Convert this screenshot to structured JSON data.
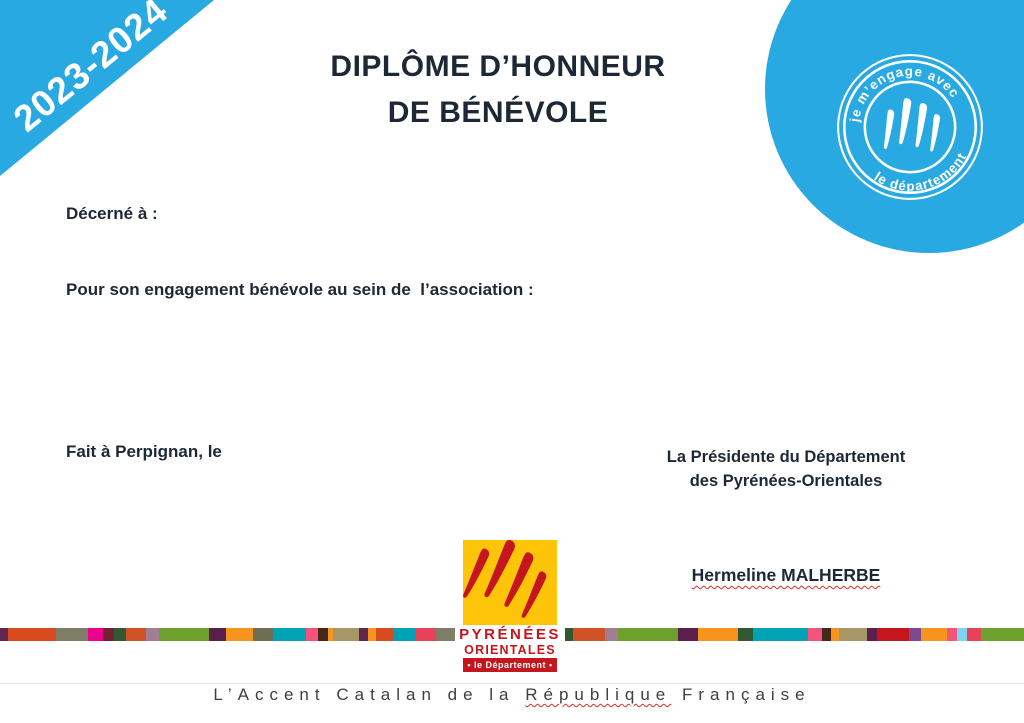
{
  "ribbon": {
    "year": "2023-2024",
    "color": "#29A9E1"
  },
  "title": {
    "line1": "DIPLÔME D’HONNEUR",
    "line2": "DE BÉNÉVOLE"
  },
  "badge": {
    "color": "#29A9E1",
    "top_text": "je m’engage avec",
    "bottom_text": "le département"
  },
  "body": {
    "awarded_to_label": "Décerné à :",
    "engagement_label": "Pour son engagement bénévole au sein de  l’association :",
    "place_date_label": "Fait à Perpignan, le"
  },
  "signature": {
    "role_line1": "La Présidente du Département",
    "role_line2": "des Pyrénées-Orientales",
    "name": "Hermeline MALHERBE"
  },
  "logo": {
    "name_line1": "PYRÉNÉES",
    "name_line2": "ORIENTALES",
    "banner": "• le Département •",
    "yellow": "#FDC408",
    "red": "#C4161C"
  },
  "footer": {
    "slogan_pre": "L’Accent Catalan de la ",
    "slogan_marked": "République",
    "slogan_post": " Française"
  },
  "stripe": {
    "segments": [
      [
        8,
        "#5E2750"
      ],
      [
        48,
        "#D84B20"
      ],
      [
        32,
        "#7E7D66"
      ],
      [
        15,
        "#EC008C"
      ],
      [
        11,
        "#6E2233"
      ],
      [
        12,
        "#335633"
      ],
      [
        20,
        "#D05226"
      ],
      [
        13,
        "#A07E93"
      ],
      [
        50,
        "#6FA02E"
      ],
      [
        17,
        "#5A1F4B"
      ],
      [
        27,
        "#F7941D"
      ],
      [
        20,
        "#6E6F52"
      ],
      [
        33,
        "#00A3B4"
      ],
      [
        12,
        "#F4537B"
      ],
      [
        10,
        "#44291B"
      ],
      [
        5,
        "#F7941D"
      ],
      [
        26,
        "#A59767"
      ],
      [
        9,
        "#5E2750"
      ],
      [
        8,
        "#F7941D"
      ],
      [
        17,
        "#D84B20"
      ],
      [
        23,
        "#00A3B4"
      ],
      [
        20,
        "#E8425A"
      ],
      [
        20,
        "#7E7D66"
      ],
      [
        8,
        "#5C3A22"
      ],
      [
        40,
        "#D84B20"
      ],
      [
        30,
        "#7E7D66"
      ],
      [
        15,
        "#EC008C"
      ],
      [
        12,
        "#6E2233"
      ],
      [
        12,
        "#335633"
      ],
      [
        32,
        "#D05226"
      ],
      [
        13,
        "#A07E93"
      ],
      [
        60,
        "#6FA02E"
      ],
      [
        20,
        "#5A1F4B"
      ],
      [
        40,
        "#F7941D"
      ],
      [
        15,
        "#335633"
      ],
      [
        55,
        "#00A3B4"
      ],
      [
        14,
        "#F4537B"
      ],
      [
        9,
        "#44291B"
      ],
      [
        8,
        "#F7941D"
      ],
      [
        28,
        "#A59767"
      ],
      [
        10,
        "#5A1F4B"
      ],
      [
        32,
        "#C4161C"
      ],
      [
        12,
        "#7B4B8E"
      ],
      [
        26,
        "#F7941D"
      ],
      [
        10,
        "#F4537B"
      ],
      [
        10,
        "#7FD4F0"
      ],
      [
        14,
        "#E8425A"
      ],
      [
        43,
        "#6FA02E"
      ]
    ]
  }
}
